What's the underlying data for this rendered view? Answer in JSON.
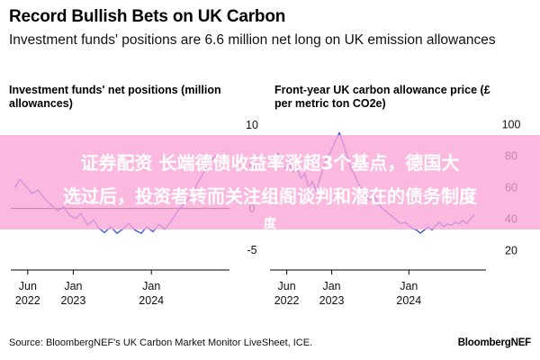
{
  "header": {
    "title": "Record Bullish Bets on UK Carbon",
    "subtitle": "Investment funds' positions are 6.6 million net long on UK emission allowances"
  },
  "overlay": {
    "line1": "证券配资 长端德债收益率涨超3个基点，德国大",
    "line2": "选过后，投资者转而关注组阁谈判和潜在的债务制度",
    "line3": "度"
  },
  "footer": {
    "source": "Source: BloombergNEF's UK Carbon Market Monitor LiveSheet, ICE.",
    "brand": "BloombergNEF"
  },
  "colors": {
    "series": "#3b5bdb",
    "zero_line": "#000000"
  },
  "chart_data": [
    {
      "type": "line",
      "title": "Investment funds' net positions (million allowances)",
      "x_ticks": [
        {
          "label": [
            "Jun",
            "2022"
          ],
          "t": 2022.417
        },
        {
          "label": [
            "Jan",
            "2023"
          ],
          "t": 2023.0
        },
        {
          "label": [
            "Jan",
            "2024"
          ],
          "t": 2024.0
        }
      ],
      "xlim": [
        2022.2,
        2025.0
      ],
      "y_ticks": [
        10,
        5,
        0,
        -5
      ],
      "ylim": [
        -6,
        11
      ],
      "axis_side": "right",
      "grid": false,
      "series": [
        {
          "points": [
            [
              2022.25,
              2.5
            ],
            [
              2022.32,
              3.5
            ],
            [
              2022.4,
              2.6
            ],
            [
              2022.47,
              1.8
            ],
            [
              2022.55,
              2.2
            ],
            [
              2022.63,
              1.2
            ],
            [
              2022.72,
              0.4
            ],
            [
              2022.8,
              -0.3
            ],
            [
              2022.88,
              0.2
            ],
            [
              2022.95,
              -0.8
            ],
            [
              2023.03,
              -1.2
            ],
            [
              2023.1,
              -0.6
            ],
            [
              2023.18,
              -2.0
            ],
            [
              2023.26,
              -1.4
            ],
            [
              2023.33,
              -2.4
            ],
            [
              2023.4,
              -2.9
            ],
            [
              2023.48,
              -2.2
            ],
            [
              2023.56,
              -3.0
            ],
            [
              2023.63,
              -2.5
            ],
            [
              2023.71,
              -1.8
            ],
            [
              2023.79,
              -2.6
            ],
            [
              2023.87,
              -3.0
            ],
            [
              2023.94,
              -2.2
            ],
            [
              2024.02,
              -2.8
            ],
            [
              2024.1,
              -1.9
            ],
            [
              2024.17,
              -2.5
            ],
            [
              2024.25,
              -1.6
            ],
            [
              2024.33,
              -0.4
            ],
            [
              2024.42,
              0.6
            ],
            [
              2024.5,
              1.4
            ],
            [
              2024.58,
              2.8
            ],
            [
              2024.66,
              4.2
            ],
            [
              2024.74,
              5.5
            ],
            [
              2024.8,
              6.1
            ],
            [
              2024.86,
              6.6
            ]
          ]
        }
      ]
    },
    {
      "type": "line",
      "title": "Front-year UK carbon allowance price (£ per metric ton CO2e)",
      "x_ticks": [
        {
          "label": [
            "Jun",
            "2022"
          ],
          "t": 2022.417
        },
        {
          "label": [
            "Jan",
            "2023"
          ],
          "t": 2023.0
        },
        {
          "label": [
            "Jan",
            "2024"
          ],
          "t": 2024.0
        }
      ],
      "xlim": [
        2022.2,
        2025.0
      ],
      "y_ticks": [
        100,
        80,
        60,
        40,
        20
      ],
      "ylim": [
        15,
        105
      ],
      "axis_side": "right",
      "grid": false,
      "series": [
        {
          "points": [
            [
              2022.25,
              78
            ],
            [
              2022.3,
              82
            ],
            [
              2022.35,
              76
            ],
            [
              2022.4,
              72
            ],
            [
              2022.45,
              75
            ],
            [
              2022.5,
              70
            ],
            [
              2022.55,
              73
            ],
            [
              2022.6,
              66
            ],
            [
              2022.65,
              69
            ],
            [
              2022.7,
              60
            ],
            [
              2022.75,
              64
            ],
            [
              2022.8,
              58
            ],
            [
              2022.85,
              66
            ],
            [
              2022.9,
              74
            ],
            [
              2022.95,
              80
            ],
            [
              2023.0,
              84
            ],
            [
              2023.05,
              90
            ],
            [
              2023.1,
              95
            ],
            [
              2023.15,
              88
            ],
            [
              2023.2,
              80
            ],
            [
              2023.25,
              72
            ],
            [
              2023.3,
              68
            ],
            [
              2023.35,
              62
            ],
            [
              2023.4,
              58
            ],
            [
              2023.45,
              54
            ],
            [
              2023.5,
              52
            ],
            [
              2023.55,
              55
            ],
            [
              2023.6,
              50
            ],
            [
              2023.65,
              47
            ],
            [
              2023.7,
              45
            ],
            [
              2023.75,
              43
            ],
            [
              2023.8,
              41
            ],
            [
              2023.85,
              39
            ],
            [
              2023.9,
              37
            ],
            [
              2023.95,
              38
            ],
            [
              2024.0,
              36
            ],
            [
              2024.05,
              34
            ],
            [
              2024.1,
              33
            ],
            [
              2024.15,
              31
            ],
            [
              2024.2,
              33
            ],
            [
              2024.25,
              35
            ],
            [
              2024.3,
              33
            ],
            [
              2024.35,
              36
            ],
            [
              2024.4,
              38
            ],
            [
              2024.45,
              35
            ],
            [
              2024.5,
              37
            ],
            [
              2024.55,
              36
            ],
            [
              2024.6,
              38
            ],
            [
              2024.65,
              37
            ],
            [
              2024.7,
              39
            ],
            [
              2024.75,
              37
            ],
            [
              2024.8,
              40
            ],
            [
              2024.85,
              43
            ]
          ]
        }
      ]
    }
  ]
}
